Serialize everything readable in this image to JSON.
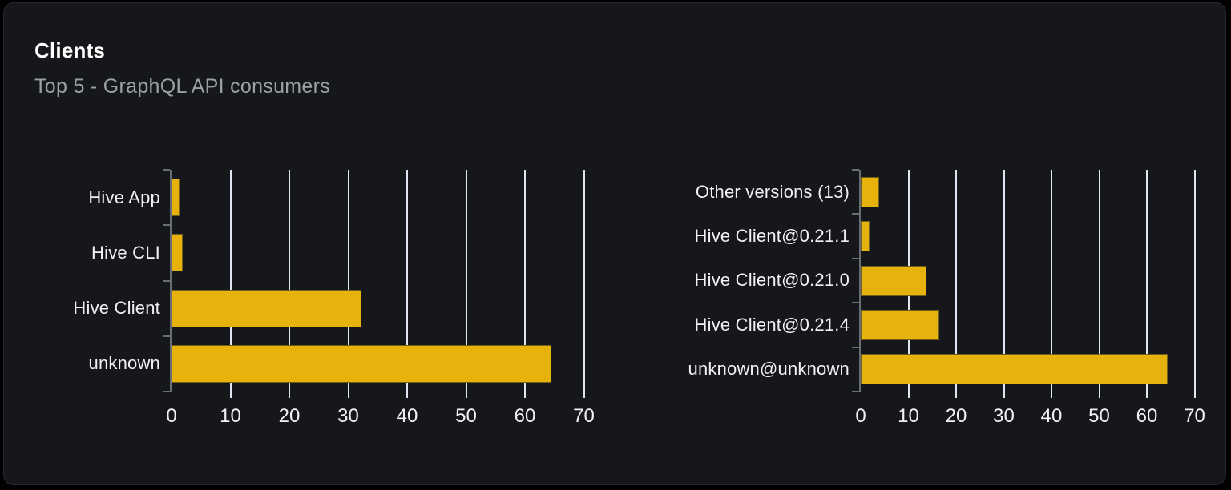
{
  "card": {
    "title": "Clients",
    "subtitle": "Top 5 - GraphQL API consumers"
  },
  "colors": {
    "page_bg": "#000000",
    "card_bg": "#16171b",
    "card_border": "#27292e",
    "title_color": "#ffffff",
    "subtitle_color": "#9aa0a6",
    "bar_fill": "#e8b20c",
    "bar_stroke": "#6f6119",
    "gridline": "#dfe5f0",
    "axis": "#6b6d74",
    "label_color": "#f0f1f4"
  },
  "chart_data": [
    {
      "type": "bar",
      "orientation": "horizontal",
      "title": "",
      "xlabel": "",
      "ylabel": "",
      "categories": [
        "Hive App",
        "Hive CLI",
        "Hive Client",
        "unknown"
      ],
      "values": [
        1.3,
        1.9,
        32.3,
        64.5
      ],
      "x_ticks": [
        0,
        10,
        20,
        30,
        40,
        50,
        60,
        70
      ],
      "xlim": [
        0,
        75
      ],
      "grid": "vertical",
      "legend": "none",
      "bar_color": "#e8b20c"
    },
    {
      "type": "bar",
      "orientation": "horizontal",
      "title": "",
      "xlabel": "",
      "ylabel": "",
      "categories": [
        "Other versions (13)",
        "Hive Client@0.21.1",
        "Hive Client@0.21.0",
        "Hive Client@0.21.4",
        "unknown@unknown"
      ],
      "values": [
        3.9,
        1.8,
        13.7,
        16.4,
        64.4
      ],
      "x_ticks": [
        0,
        10,
        20,
        30,
        40,
        50,
        60,
        70
      ],
      "xlim": [
        0,
        75
      ],
      "grid": "vertical",
      "legend": "none",
      "bar_color": "#e8b20c"
    }
  ]
}
